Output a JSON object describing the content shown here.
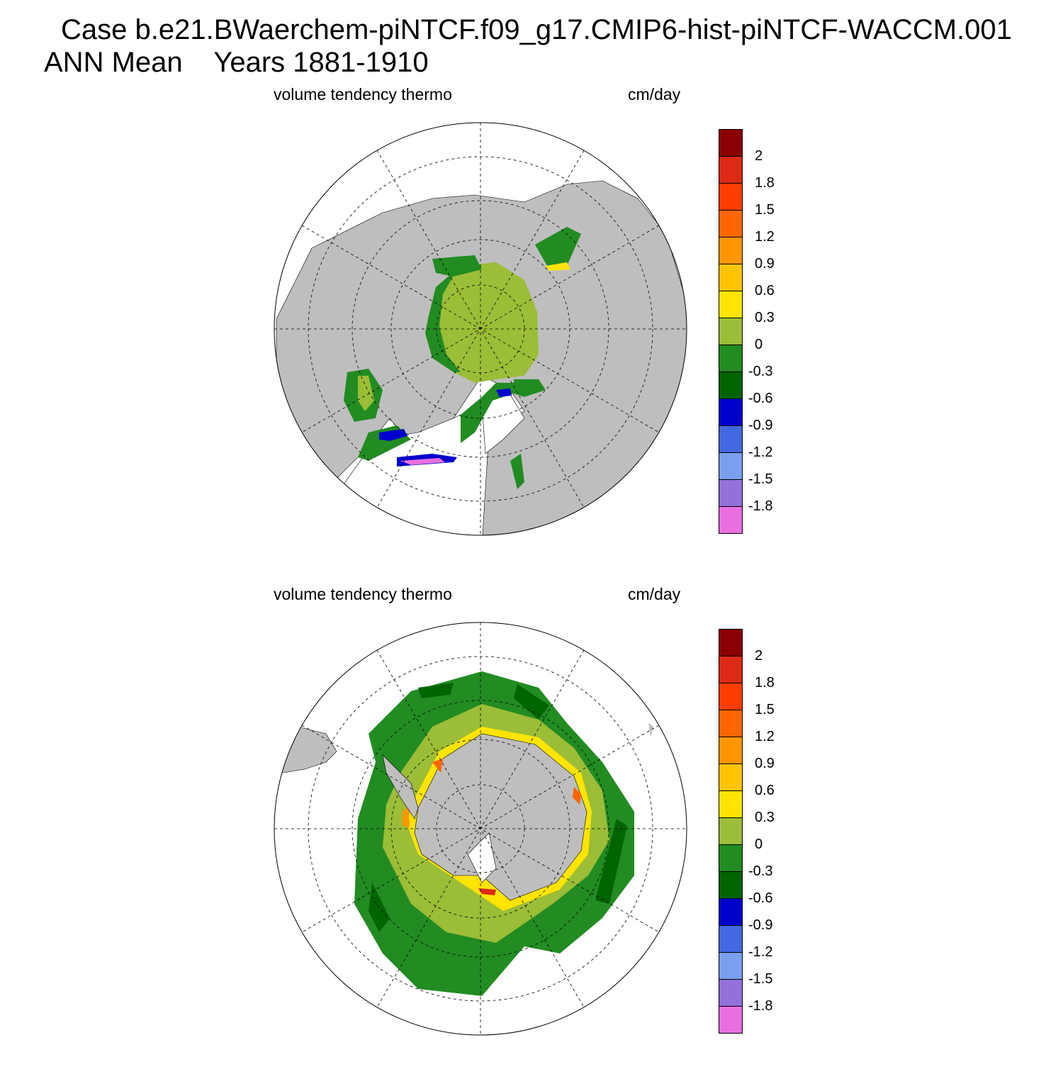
{
  "title": {
    "line1": "Case b.e21.BWaerchem-piNTCF.f09_g17.CMIP6-hist-piNTCF-WACCM.001",
    "line2": "ANN Mean    Years 1881-1910"
  },
  "panels": [
    {
      "id": "north",
      "hemisphere": "Arctic",
      "left_label": "volume tendency thermo",
      "right_label": "cm/day"
    },
    {
      "id": "south",
      "hemisphere": "Antarctic",
      "left_label": "volume tendency thermo",
      "right_label": "cm/day"
    }
  ],
  "colorbar": {
    "labels": [
      "2",
      "1.8",
      "1.5",
      "1.2",
      "0.9",
      "0.6",
      "0.3",
      "0",
      "-0.3",
      "-0.6",
      "-0.9",
      "-1.2",
      "-1.5",
      "-1.8"
    ],
    "colors": [
      "#8b0000",
      "#dd2a15",
      "#ff3d00",
      "#ff6600",
      "#ff9500",
      "#ffc400",
      "#ffe400",
      "#9bbd37",
      "#228b22",
      "#006400",
      "#0000cd",
      "#4169e1",
      "#7b9ff0",
      "#9370db",
      "#e76fe0"
    ]
  },
  "map_colors": {
    "land": "#bebebe",
    "missing": "#ffffff"
  }
}
